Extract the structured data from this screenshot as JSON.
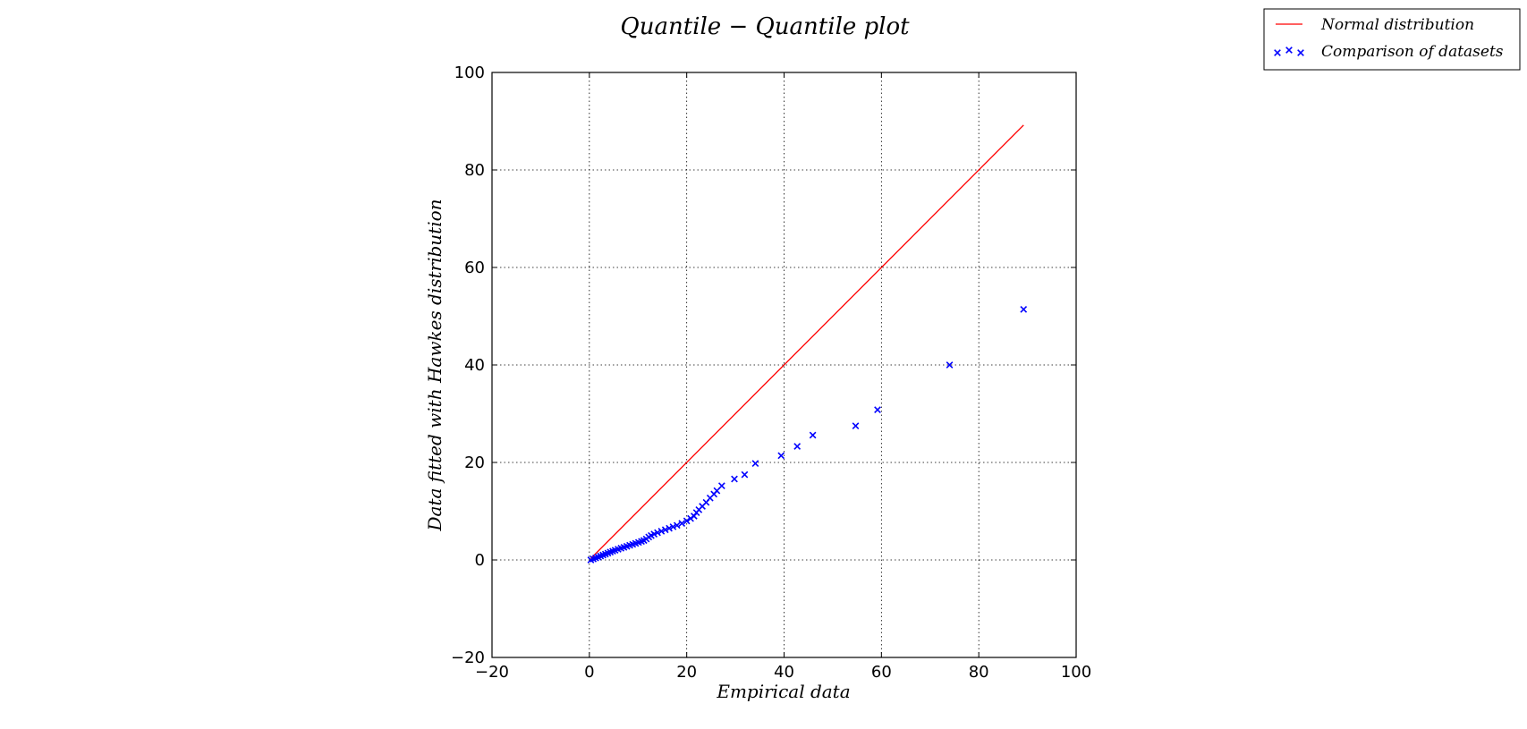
{
  "chart_data": {
    "type": "scatter",
    "title": "Quantile − Quantile plot",
    "xlabel": "Empirical data",
    "ylabel": "Data fitted with Hawkes distribution",
    "xlim": [
      -20,
      100
    ],
    "ylim": [
      -20,
      100
    ],
    "xticks": [
      -20,
      0,
      20,
      40,
      60,
      80,
      100
    ],
    "yticks": [
      -20,
      0,
      20,
      40,
      60,
      80,
      100
    ],
    "xtick_labels": [
      "−20",
      "0",
      "20",
      "40",
      "60",
      "80",
      "100"
    ],
    "ytick_labels": [
      "−20",
      "0",
      "20",
      "40",
      "60",
      "80",
      "100"
    ],
    "grid": true,
    "legend_position": "top-right, outside plot",
    "series": [
      {
        "name": "Normal distribution",
        "type": "line",
        "color": "#ff0000",
        "x": [
          0.3,
          89.2
        ],
        "y": [
          0.3,
          89.2
        ]
      },
      {
        "name": "Comparison of datasets",
        "type": "scatter",
        "marker": "x",
        "color": "#0000ff",
        "x": [
          0.3,
          0.8,
          1.3,
          1.8,
          2.3,
          2.8,
          3.3,
          3.8,
          4.3,
          4.8,
          5.3,
          5.9,
          6.5,
          7.1,
          7.7,
          8.3,
          8.9,
          9.5,
          10.1,
          10.7,
          11.2,
          11.7,
          12.2,
          12.7,
          13.3,
          14.0,
          14.8,
          15.6,
          16.4,
          17.2,
          18.0,
          19.0,
          20.0,
          20.8,
          21.5,
          22.0,
          22.5,
          23.2,
          24.0,
          24.8,
          25.6,
          26.2,
          27.2,
          29.8,
          31.9,
          34.1,
          39.4,
          42.7,
          45.9,
          54.7,
          59.2,
          74.0,
          89.2
        ],
        "y": [
          0.0,
          0.2,
          0.4,
          0.6,
          0.8,
          1.0,
          1.2,
          1.4,
          1.6,
          1.8,
          2.0,
          2.2,
          2.4,
          2.6,
          2.8,
          3.0,
          3.2,
          3.4,
          3.6,
          3.8,
          4.0,
          4.3,
          4.7,
          5.0,
          5.3,
          5.6,
          5.9,
          6.2,
          6.5,
          6.8,
          7.1,
          7.5,
          8.0,
          8.5,
          9.0,
          9.7,
          10.3,
          11.0,
          11.8,
          12.7,
          13.5,
          14.2,
          15.2,
          16.6,
          17.5,
          19.8,
          21.4,
          23.3,
          25.6,
          27.5,
          30.8,
          40.0,
          51.4
        ]
      }
    ]
  }
}
